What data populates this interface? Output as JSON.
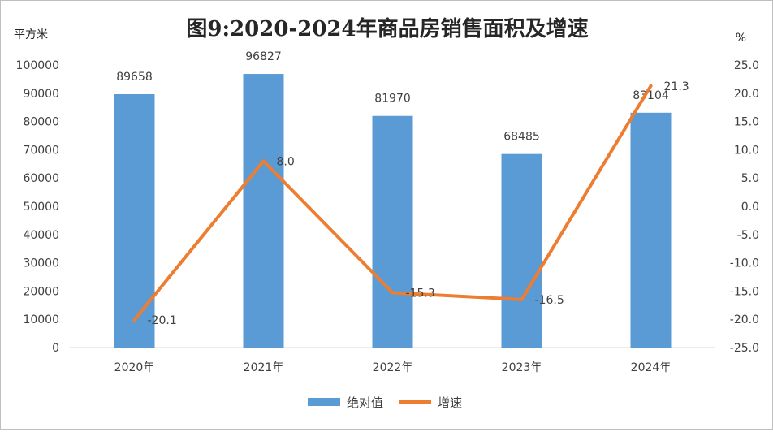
{
  "chart_data": {
    "type": "bar",
    "title": "图9:2020-2024年商品房销售面积及增速",
    "ylabel_left": "平方米",
    "ylabel_right": "%",
    "categories": [
      "2020年",
      "2021年",
      "2022年",
      "2023年",
      "2024年"
    ],
    "series": [
      {
        "name": "绝对值",
        "type": "bar",
        "axis": "left",
        "color": "#5b9bd5",
        "values": [
          89658,
          96827,
          81970,
          68485,
          83104
        ]
      },
      {
        "name": "增速",
        "type": "line",
        "axis": "right",
        "color": "#ed7d31",
        "values": [
          -20.1,
          8.0,
          -15.3,
          -16.5,
          21.3
        ]
      }
    ],
    "left_axis": {
      "ylim": [
        0,
        100000
      ],
      "ticks": [
        "0",
        "10000",
        "20000",
        "30000",
        "40000",
        "50000",
        "60000",
        "70000",
        "80000",
        "90000",
        "100000"
      ]
    },
    "right_axis": {
      "ylim": [
        -25,
        25
      ],
      "ticks": [
        "-25.0",
        "-20.0",
        "-15.0",
        "-10.0",
        "-5.0",
        "0.0",
        "5.0",
        "10.0",
        "15.0",
        "20.0",
        "25.0"
      ]
    },
    "bar_labels": [
      "89658",
      "96827",
      "81970",
      "68485",
      "83104"
    ],
    "line_labels": [
      "-20.1",
      "8.0",
      "-15.3",
      "-16.5",
      "21.3"
    ],
    "grid": false,
    "legend_position": "bottom"
  }
}
